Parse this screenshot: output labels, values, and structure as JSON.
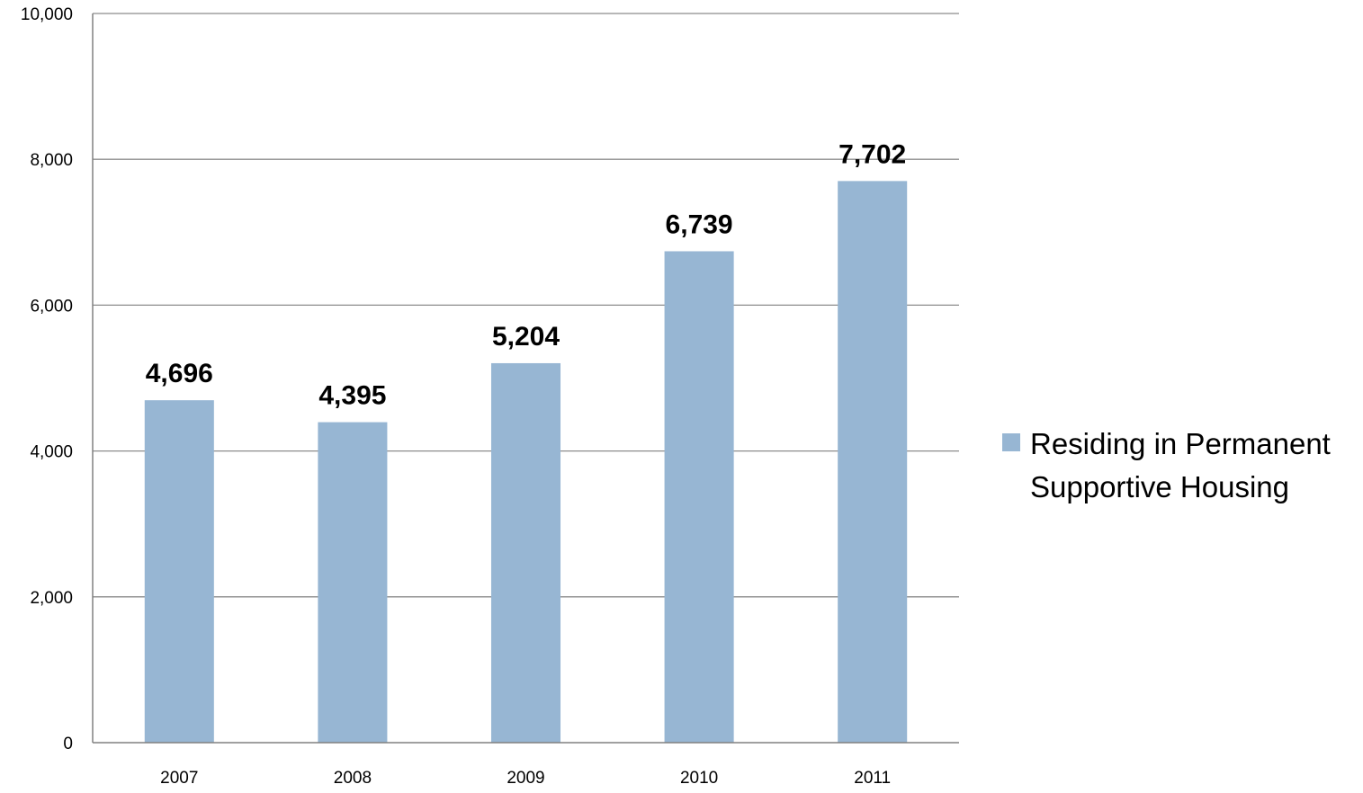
{
  "chart_data": {
    "type": "bar",
    "categories": [
      "2007",
      "2008",
      "2009",
      "2010",
      "2011"
    ],
    "series": [
      {
        "name": "Residing in Permanent Supportive Housing",
        "values": [
          4696,
          4395,
          5204,
          6739,
          7702
        ],
        "color": "#97b6d3"
      }
    ],
    "data_labels": [
      "4,696",
      "4,395",
      "5,204",
      "6,739",
      "7,702"
    ],
    "y_ticks": [
      0,
      2000,
      4000,
      6000,
      8000,
      10000
    ],
    "y_tick_labels": [
      "0",
      "2,000",
      "4,000",
      "6,000",
      "8,000",
      "10,000"
    ],
    "ylim": [
      0,
      10000
    ],
    "title": "",
    "xlabel": "",
    "ylabel": "",
    "grid": true,
    "legend_position": "right",
    "legend_lines": [
      "Residing in Permanent",
      "Supportive Housing"
    ],
    "gridline_color": "#8c8c8c",
    "axis_color": "#808080"
  }
}
